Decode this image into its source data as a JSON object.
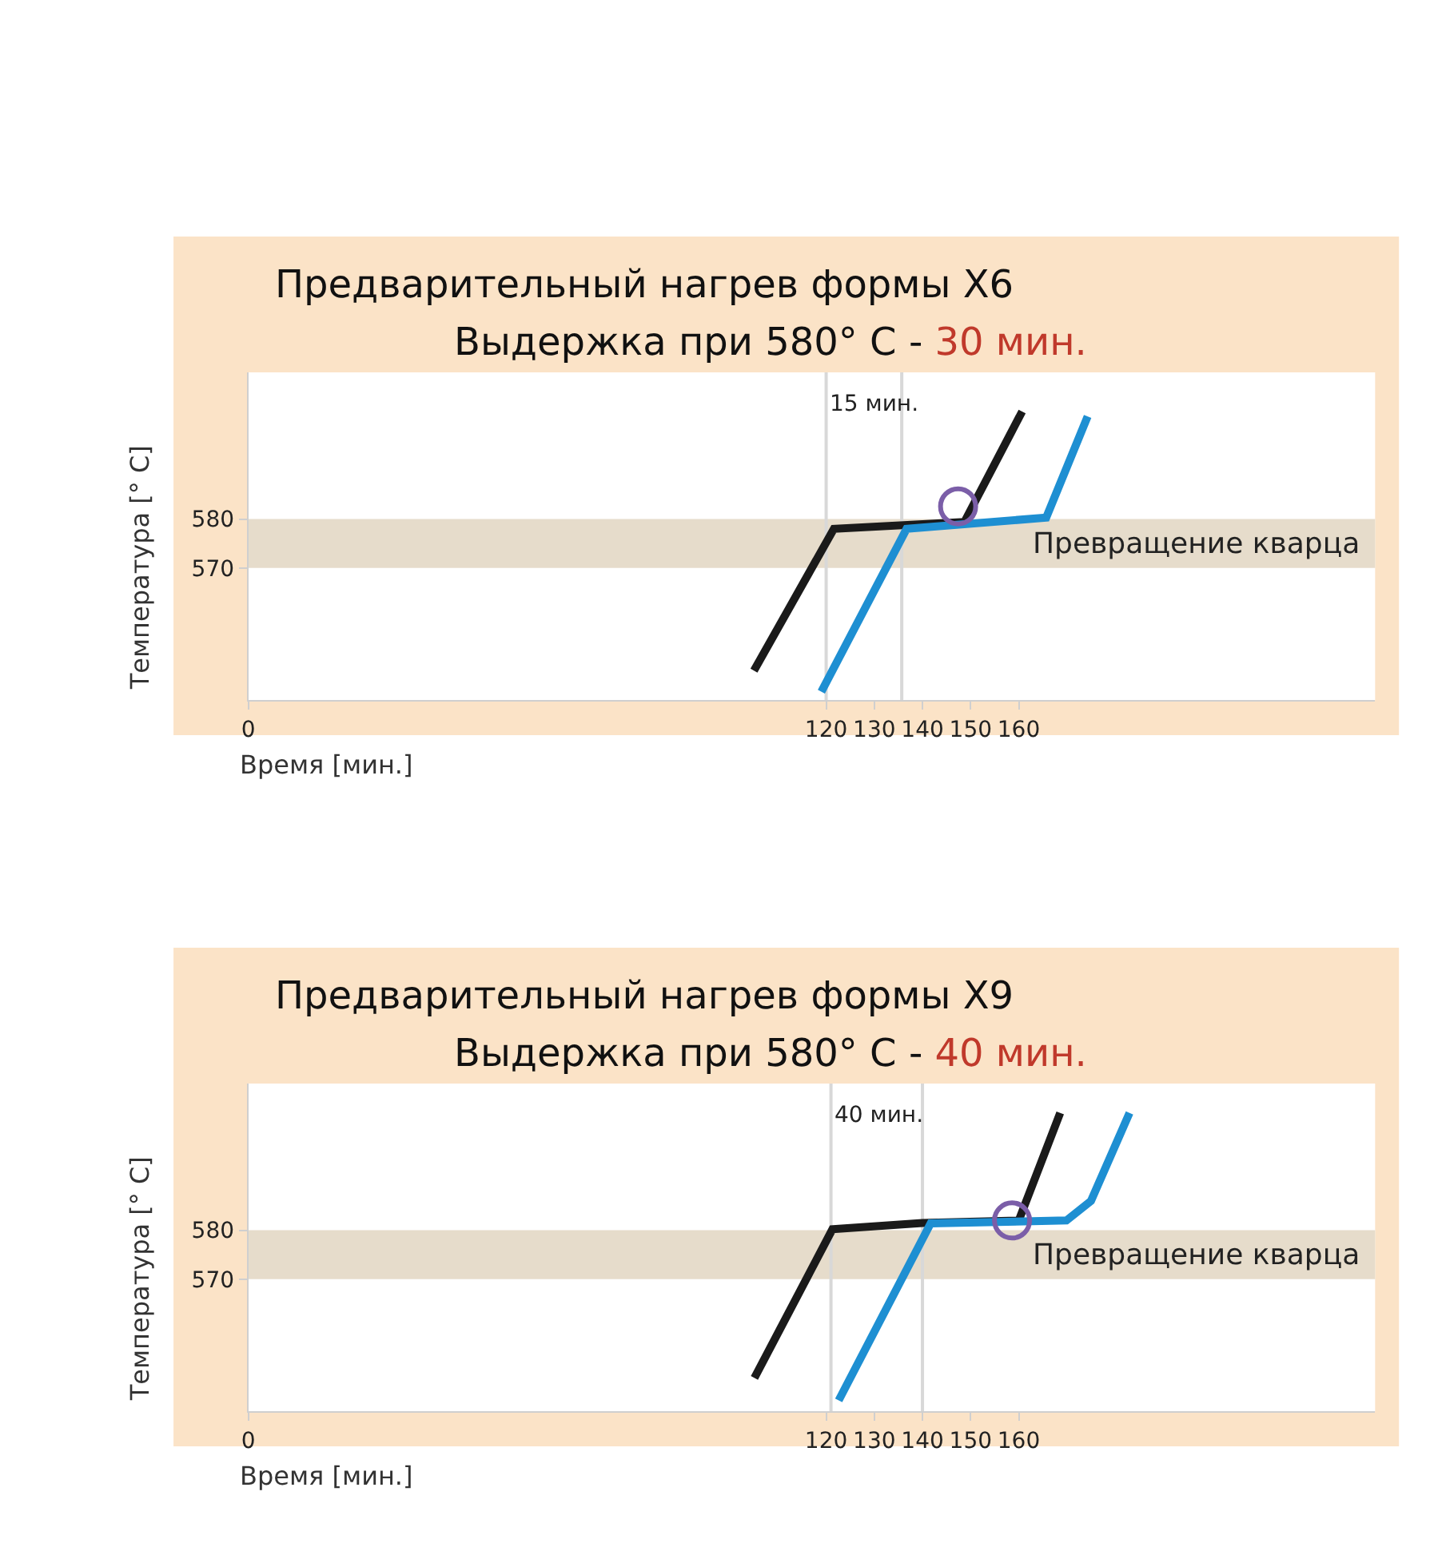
{
  "chart_data": [
    {
      "type": "line",
      "title": "Предварительный нагрев формы X6",
      "subtitle": "Выдержка при 580° С - 30 мин.",
      "xlabel": "Время [мин.]",
      "ylabel": "Температура [° C]",
      "xlim": [
        0,
        234
      ],
      "ylim": [
        543,
        610
      ],
      "xticks": [
        0,
        120,
        130,
        140,
        150,
        160
      ],
      "yticks": [
        570,
        580
      ],
      "grid": false,
      "marker": "none",
      "line_style": "solid",
      "series": [
        {
          "color": "#1a1a1a",
          "x": [
            105,
            121.6,
            148.7,
            160.7
          ],
          "values": [
            549,
            578,
            579.4,
            602
          ]
        },
        {
          "color": "#1e8fd2",
          "x": [
            119,
            136.7,
            165.7,
            174.3
          ],
          "values": [
            544.7,
            578,
            580.3,
            601
          ]
        },
        {
          "type": "scatter",
          "marker": "circle",
          "color": "#7b5ea8",
          "x": [
            147.4
          ],
          "values": [
            582.6
          ]
        }
      ],
      "ref_lines": [
        {
          "axis": "x",
          "value": 120,
          "color": "#d8d8d8"
        },
        {
          "axis": "x",
          "value": 135.7,
          "color": "#d8d8d8"
        }
      ],
      "bands": [
        {
          "axis": "y",
          "from": 570,
          "to": 580,
          "label": "Превращение кварца",
          "color": "#e6dccb"
        }
      ],
      "annotations": [
        "15 мин."
      ]
    },
    {
      "type": "line",
      "title": "Предварительный нагрев формы X9",
      "subtitle": "Выдержка при 580° С - 40 мин.",
      "xlabel": "Время [мин.]",
      "ylabel": "Температура [° C]",
      "xlim": [
        0,
        234
      ],
      "ylim": [
        543,
        610
      ],
      "xticks": [
        0,
        120,
        130,
        140,
        150,
        160
      ],
      "yticks": [
        570,
        580
      ],
      "grid": false,
      "marker": "none",
      "line_style": "solid",
      "series": [
        {
          "color": "#1a1a1a",
          "x": [
            105.1,
            121.3,
            140,
            160,
            168.6
          ],
          "values": [
            549.8,
            580.2,
            581.5,
            582,
            604
          ]
        },
        {
          "color": "#1e8fd2",
          "x": [
            122.6,
            141.7,
            169.9,
            175,
            183
          ],
          "values": [
            545.2,
            581.4,
            582,
            586,
            604
          ]
        },
        {
          "type": "scatter",
          "marker": "circle",
          "color": "#7b5ea8",
          "x": [
            158.6
          ],
          "values": [
            582
          ]
        }
      ],
      "ref_lines": [
        {
          "axis": "x",
          "value": 121,
          "color": "#d8d8d8"
        },
        {
          "axis": "x",
          "value": 140,
          "color": "#d8d8d8"
        }
      ],
      "bands": [
        {
          "axis": "y",
          "from": 570,
          "to": 580,
          "label": "Превращение кварца",
          "color": "#e6dccb"
        }
      ],
      "annotations": [
        "40 мин."
      ]
    }
  ]
}
